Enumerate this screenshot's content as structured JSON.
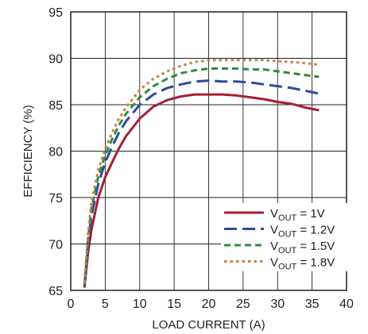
{
  "chart_data": {
    "type": "line",
    "title": "",
    "xlabel": "LOAD CURRENT (A)",
    "ylabel": "EFFICIENCY (%)",
    "xlim": [
      0,
      40
    ],
    "ylim": [
      65,
      95
    ],
    "xticks": [
      0,
      5,
      10,
      15,
      20,
      25,
      30,
      35,
      40
    ],
    "yticks": [
      65,
      70,
      75,
      80,
      85,
      90,
      95
    ],
    "grid": true,
    "legend_position": "bottom-right",
    "series": [
      {
        "name_prefix": "V",
        "name_sub": "OUT",
        "name_suffix": " = 1V",
        "color": "#a31f34",
        "dash": "solid",
        "x": [
          2,
          2.5,
          3,
          4,
          5,
          6,
          7,
          8,
          10,
          12,
          14,
          16,
          18,
          20,
          22,
          24,
          26,
          28,
          30,
          32,
          34,
          36
        ],
        "y": [
          65.3,
          69.0,
          71.5,
          75.0,
          77.2,
          78.8,
          80.3,
          81.6,
          83.5,
          84.8,
          85.5,
          85.9,
          86.1,
          86.1,
          86.1,
          86.0,
          85.8,
          85.6,
          85.3,
          85.1,
          84.7,
          84.4
        ]
      },
      {
        "name_prefix": "V",
        "name_sub": "OUT",
        "name_suffix": " = 1.2V",
        "color": "#2e4a9e",
        "dash": "long-dash",
        "x": [
          2,
          2.5,
          3,
          4,
          5,
          6,
          7,
          8,
          10,
          12,
          14,
          16,
          18,
          20,
          22,
          24,
          26,
          28,
          30,
          32,
          34,
          36
        ],
        "y": [
          65.5,
          70.0,
          73.0,
          76.5,
          78.8,
          80.5,
          82.0,
          83.2,
          85.0,
          86.1,
          86.8,
          87.2,
          87.5,
          87.6,
          87.5,
          87.5,
          87.4,
          87.2,
          87.0,
          86.8,
          86.5,
          86.2
        ]
      },
      {
        "name_prefix": "V",
        "name_sub": "OUT",
        "name_suffix": " = 1.5V",
        "color": "#2e8b3e",
        "dash": "dash",
        "x": [
          2,
          2.5,
          3,
          4,
          5,
          6,
          7,
          8,
          10,
          12,
          14,
          16,
          18,
          20,
          22,
          24,
          26,
          28,
          30,
          32,
          34,
          36
        ],
        "y": [
          65.6,
          70.5,
          73.8,
          77.3,
          79.6,
          81.3,
          82.8,
          84.0,
          85.8,
          87.0,
          87.8,
          88.4,
          88.7,
          88.9,
          88.9,
          88.9,
          88.8,
          88.8,
          88.6,
          88.4,
          88.2,
          88.0
        ]
      },
      {
        "name_prefix": "V",
        "name_sub": "OUT",
        "name_suffix": " = 1.8V",
        "color": "#c8814a",
        "dash": "dot",
        "x": [
          2,
          2.5,
          3,
          4,
          5,
          6,
          7,
          8,
          10,
          12,
          14,
          16,
          18,
          20,
          22,
          24,
          26,
          28,
          30,
          32,
          34,
          36
        ],
        "y": [
          65.8,
          71.0,
          74.5,
          78.0,
          80.3,
          82.0,
          83.5,
          84.7,
          86.6,
          87.8,
          88.6,
          89.2,
          89.6,
          89.8,
          89.8,
          89.8,
          89.8,
          89.8,
          89.7,
          89.6,
          89.5,
          89.3
        ]
      }
    ]
  }
}
